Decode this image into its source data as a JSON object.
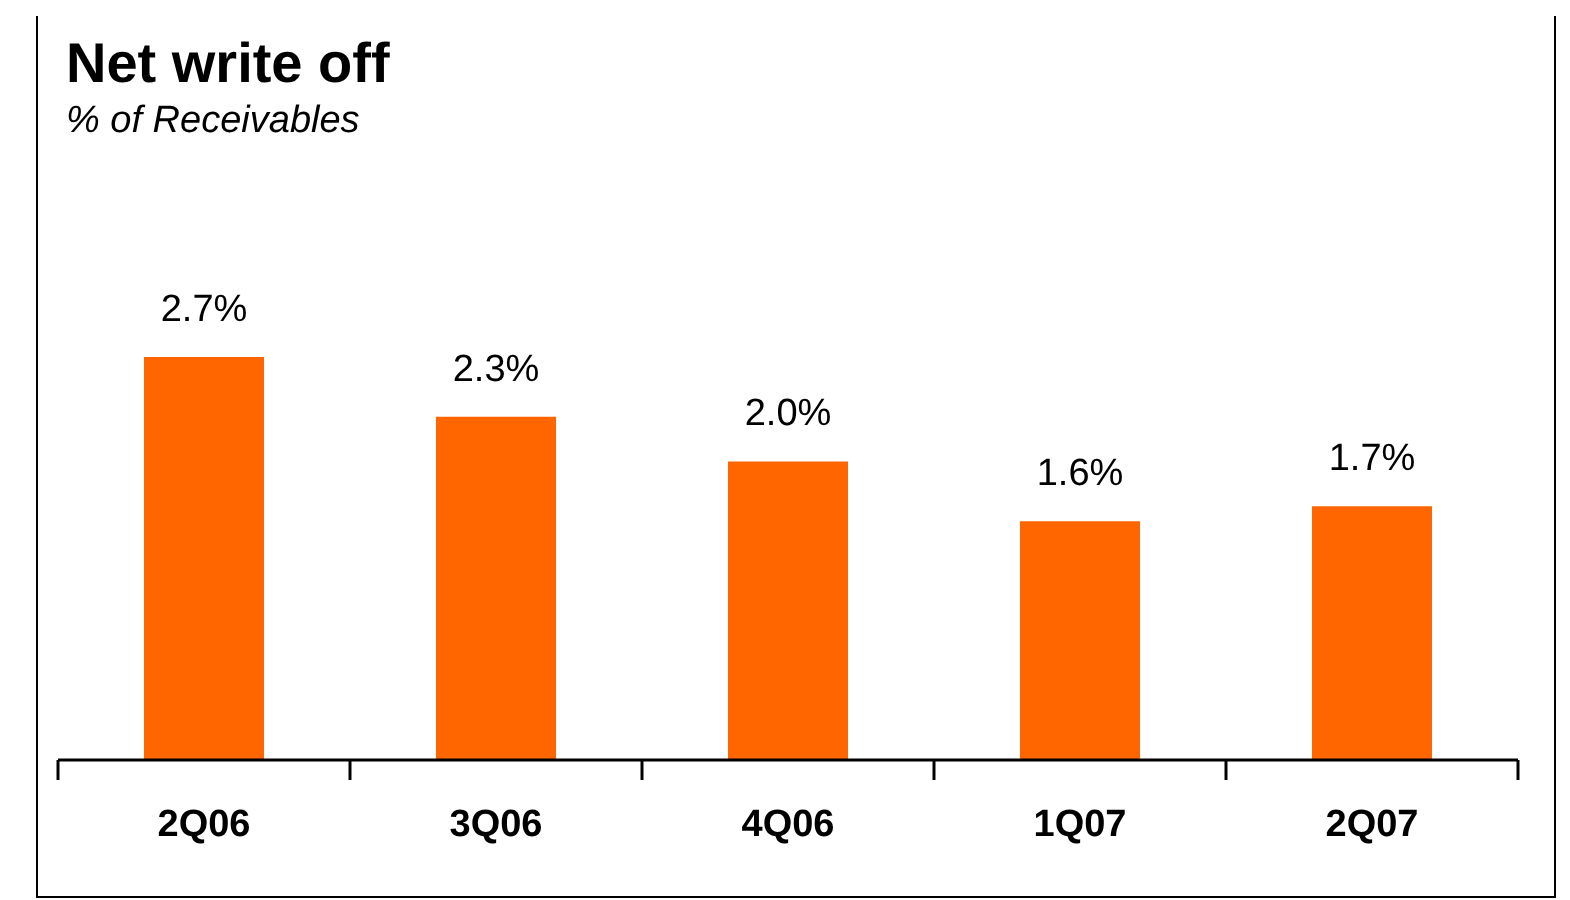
{
  "chart_data": {
    "type": "bar",
    "title": "Net write off",
    "subtitle": "% of Receivables",
    "categories": [
      "2Q06",
      "3Q06",
      "4Q06",
      "1Q07",
      "2Q07"
    ],
    "values": [
      2.7,
      2.3,
      2.0,
      1.6,
      1.7
    ],
    "value_labels": [
      "2.7%",
      "2.3%",
      "2.0%",
      "1.6%",
      "1.7%"
    ],
    "color": "#ff6600"
  }
}
